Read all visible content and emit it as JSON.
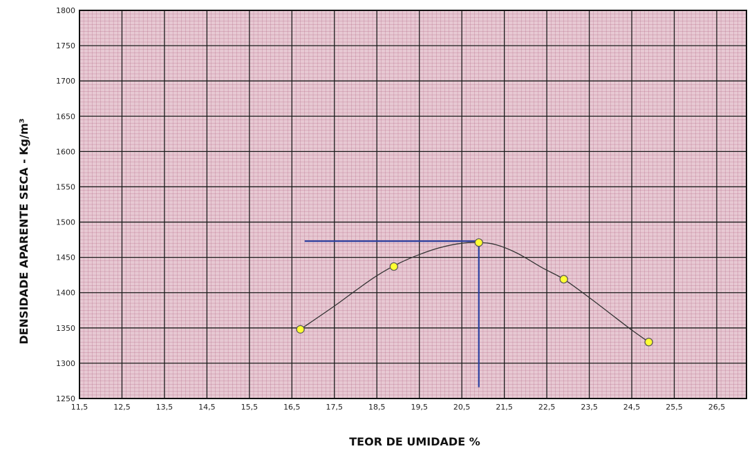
{
  "chart_data": {
    "type": "scatter",
    "title": "",
    "xlabel": "TEOR DE UMIDADE %",
    "ylabel": "DENSIDADE APARENTE SECA - Kg/m³",
    "xlim": [
      11.5,
      27.2
    ],
    "ylim": [
      1250,
      1800
    ],
    "x_ticks": [
      11.5,
      12.5,
      13.5,
      14.5,
      15.5,
      16.5,
      17.5,
      18.5,
      19.5,
      20.5,
      21.5,
      22.5,
      23.5,
      24.5,
      25.5,
      26.5
    ],
    "x_tick_labels": [
      "11,5",
      "12,5",
      "13,5",
      "14,5",
      "15,5",
      "16,5",
      "17,5",
      "18,5",
      "19,5",
      "20,5",
      "21,5",
      "22,5",
      "23,5",
      "24,5",
      "25,5",
      "26,5"
    ],
    "y_ticks": [
      1250,
      1300,
      1350,
      1400,
      1450,
      1500,
      1550,
      1600,
      1650,
      1700,
      1750,
      1800
    ],
    "y_tick_labels": [
      "1250",
      "1300",
      "1350",
      "1400",
      "1450",
      "1500",
      "1550",
      "1600",
      "1650",
      "1700",
      "1750",
      "1800"
    ],
    "grid": true,
    "series": [
      {
        "x": [
          16.7,
          18.9,
          20.9,
          22.9,
          24.9
        ],
        "y": [
          1348,
          1437,
          1471,
          1419,
          1330
        ]
      }
    ],
    "fit_curve": {
      "x": [
        16.7,
        17.5,
        18.0,
        18.5,
        19.0,
        19.5,
        20.0,
        20.5,
        20.9,
        21.3,
        21.8,
        22.4,
        22.9,
        23.5,
        24.0,
        24.5,
        24.9
      ],
      "y": [
        1348,
        1381,
        1403,
        1424,
        1441,
        1454,
        1464,
        1470,
        1471,
        1468,
        1456,
        1435,
        1419,
        1393,
        1370,
        1347,
        1330
      ]
    },
    "reference_lines": {
      "optimum_density": 1473,
      "optimum_moisture": 20.9,
      "horizontal_from_x": 16.8,
      "vertical_to_y": 1266
    },
    "colors": {
      "background": "#e7c9d3",
      "minor_grid": "#b06080",
      "major_grid": "#1a1a1a",
      "point_fill": "#ffff33",
      "point_stroke": "#555555",
      "curve": "#333333",
      "reference": "#2c3f9e"
    }
  }
}
